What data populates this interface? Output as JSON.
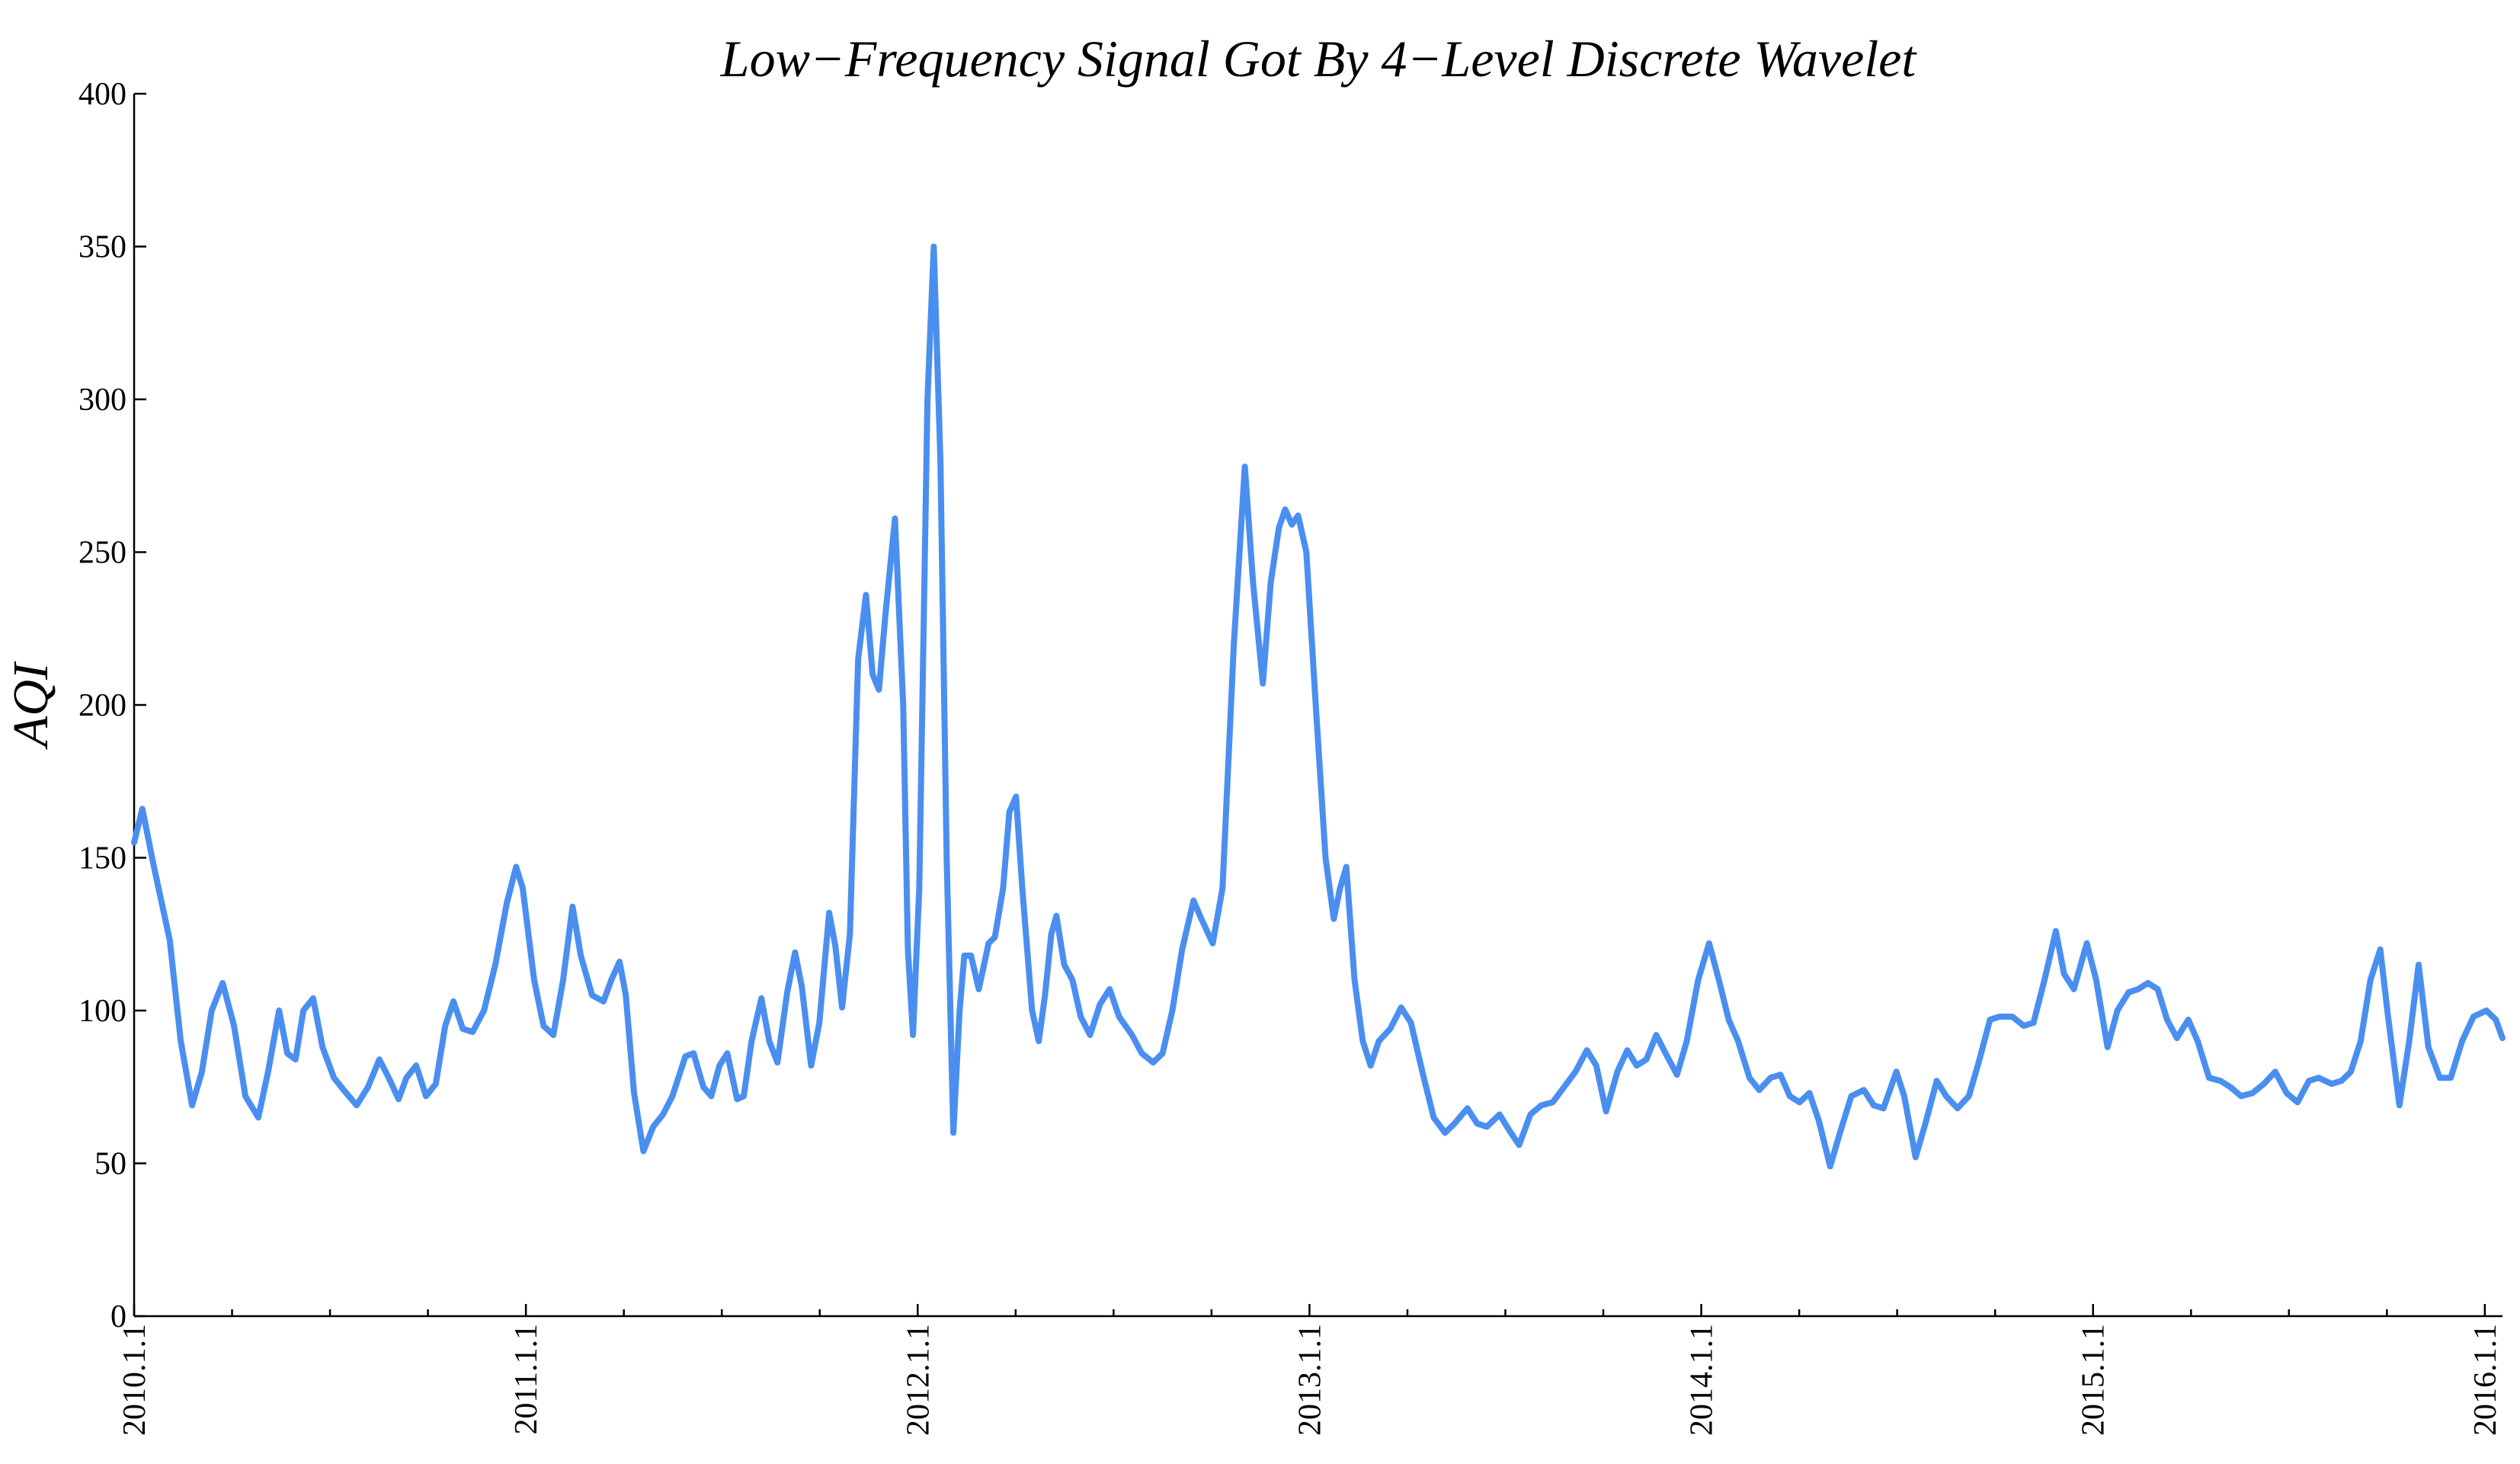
{
  "chart_data": {
    "type": "line",
    "title": "Low−Frequency Signal Got By 4−Level Discrete Wavelet",
    "ylabel": "AQI",
    "xlim": [
      2010,
      2016.045
    ],
    "ylim": [
      0,
      400
    ],
    "yticks": [
      0,
      50,
      100,
      150,
      200,
      250,
      300,
      350,
      400
    ],
    "xticks": [
      {
        "value": 2010,
        "label": "2010.1.1"
      },
      {
        "value": 2011,
        "label": "2011.1.1"
      },
      {
        "value": 2012,
        "label": "2012.1.1"
      },
      {
        "value": 2013,
        "label": "2013.1.1"
      },
      {
        "value": 2014,
        "label": "2014.1.1"
      },
      {
        "value": 2015,
        "label": "2015.1.1"
      },
      {
        "value": 2016,
        "label": "2016.1.1"
      }
    ],
    "xminorticks": [
      2010.25,
      2010.5,
      2010.75,
      2011.25,
      2011.5,
      2011.75,
      2012.25,
      2012.5,
      2012.75,
      2013.25,
      2013.5,
      2013.75,
      2014.25,
      2014.5,
      2014.75,
      2015.25,
      2015.5,
      2015.75
    ],
    "color": "#4a8ff0",
    "x": [
      2010.0,
      2010.021,
      2010.049,
      2010.091,
      2010.119,
      2010.148,
      2010.173,
      2010.198,
      2010.226,
      2010.255,
      2010.284,
      2010.317,
      2010.342,
      2010.37,
      2010.391,
      2010.412,
      2010.432,
      2010.457,
      2010.481,
      2010.51,
      2010.535,
      2010.568,
      2010.597,
      2010.626,
      2010.65,
      2010.675,
      2010.695,
      2010.72,
      2010.745,
      2010.77,
      2010.794,
      2010.815,
      2010.839,
      2010.864,
      2010.893,
      2010.922,
      2010.951,
      2010.975,
      2010.992,
      2011.021,
      2011.045,
      2011.07,
      2011.095,
      2011.119,
      2011.14,
      2011.169,
      2011.198,
      2011.218,
      2011.239,
      2011.255,
      2011.276,
      2011.3,
      2011.325,
      2011.35,
      2011.374,
      2011.407,
      2011.428,
      2011.453,
      2011.473,
      2011.494,
      2011.514,
      2011.539,
      2011.556,
      2011.576,
      2011.601,
      2011.621,
      2011.642,
      2011.667,
      2011.687,
      2011.704,
      2011.728,
      2011.749,
      2011.774,
      2011.79,
      2011.807,
      2011.827,
      2011.848,
      2011.868,
      2011.885,
      2011.901,
      2011.918,
      2011.942,
      2011.963,
      2011.975,
      2011.988,
      2012.004,
      2012.025,
      2012.041,
      2012.058,
      2012.074,
      2012.091,
      2012.107,
      2012.119,
      2012.136,
      2012.156,
      2012.181,
      2012.197,
      2012.218,
      2012.234,
      2012.251,
      2012.267,
      2012.292,
      2012.309,
      2012.325,
      2012.341,
      2012.354,
      2012.374,
      2012.395,
      2012.416,
      2012.44,
      2012.465,
      2012.49,
      2012.514,
      2012.547,
      2012.572,
      2012.601,
      2012.625,
      2012.65,
      2012.675,
      2012.704,
      2012.724,
      2012.753,
      2012.778,
      2012.807,
      2012.835,
      2012.856,
      2012.881,
      2012.901,
      2012.922,
      2012.938,
      2012.955,
      2012.971,
      2012.992,
      2013.016,
      2013.041,
      2013.062,
      2013.078,
      2013.094,
      2013.115,
      2013.136,
      2013.156,
      2013.177,
      2013.206,
      2013.234,
      2013.259,
      2013.288,
      2013.317,
      2013.346,
      2013.37,
      2013.403,
      2013.428,
      2013.453,
      2013.485,
      2013.514,
      2013.535,
      2013.564,
      2013.592,
      2013.621,
      2013.65,
      2013.679,
      2013.708,
      2013.732,
      2013.757,
      2013.786,
      2013.811,
      2013.835,
      2013.86,
      2013.885,
      2013.909,
      2013.938,
      2013.963,
      2013.992,
      2014.02,
      2014.045,
      2014.07,
      2014.094,
      2014.123,
      2014.148,
      2014.177,
      2014.202,
      2014.226,
      2014.251,
      2014.276,
      2014.3,
      2014.329,
      2014.354,
      2014.383,
      2014.415,
      2014.44,
      2014.465,
      2014.498,
      2014.518,
      2014.547,
      2014.572,
      2014.601,
      2014.625,
      2014.654,
      2014.683,
      2014.708,
      2014.737,
      2014.761,
      2014.794,
      2014.823,
      2014.848,
      2014.876,
      2014.905,
      2014.926,
      2014.951,
      2014.984,
      2015.008,
      2015.037,
      2015.062,
      2015.091,
      2015.115,
      2015.14,
      2015.165,
      2015.189,
      2015.214,
      2015.243,
      2015.267,
      2015.296,
      2015.325,
      2015.35,
      2015.378,
      2015.407,
      2015.436,
      2015.465,
      2015.494,
      2015.522,
      2015.551,
      2015.576,
      2015.609,
      2015.634,
      2015.658,
      2015.683,
      2015.708,
      2015.733,
      2015.753,
      2015.782,
      2015.807,
      2015.831,
      2015.856,
      2015.885,
      2015.913,
      2015.942,
      2015.971,
      2016.004,
      2016.028,
      2016.045
    ],
    "values": [
      155,
      166,
      148,
      123,
      90,
      69,
      80,
      100,
      109,
      95,
      72,
      65,
      80,
      100,
      86,
      84,
      100,
      104,
      88,
      78,
      74,
      69,
      75,
      84,
      78,
      71,
      78,
      82,
      72,
      76,
      95,
      103,
      94,
      93,
      100,
      115,
      135,
      147,
      140,
      110,
      95,
      92,
      110,
      134,
      118,
      105,
      103,
      110,
      116,
      105,
      73,
      54,
      62,
      66,
      72,
      85,
      86,
      75,
      72,
      82,
      86,
      71,
      72,
      90,
      104,
      90,
      83,
      106,
      119,
      108,
      82,
      96,
      132,
      121,
      101,
      125,
      215,
      236,
      210,
      205,
      230,
      261,
      200,
      120,
      92,
      140,
      300,
      350,
      280,
      150,
      60,
      100,
      118,
      118,
      107,
      122,
      124,
      140,
      165,
      170,
      140,
      100,
      90,
      105,
      125,
      131,
      115,
      110,
      98,
      92,
      102,
      107,
      98,
      92,
      86,
      83,
      86,
      100,
      120,
      136,
      130,
      122,
      140,
      220,
      278,
      240,
      207,
      240,
      258,
      264,
      259,
      262,
      250,
      200,
      150,
      130,
      140,
      147,
      110,
      90,
      82,
      90,
      94,
      101,
      96,
      80,
      65,
      60,
      63,
      68,
      63,
      62,
      66,
      60,
      56,
      66,
      69,
      70,
      75,
      80,
      87,
      82,
      67,
      80,
      87,
      82,
      84,
      92,
      86,
      79,
      90,
      110,
      122,
      110,
      97,
      90,
      78,
      74,
      78,
      79,
      72,
      70,
      73,
      64,
      49,
      60,
      72,
      74,
      69,
      68,
      80,
      72,
      52,
      63,
      77,
      72,
      68,
      72,
      83,
      97,
      98,
      98,
      95,
      96,
      110,
      126,
      112,
      107,
      122,
      110,
      88,
      100,
      106,
      107,
      109,
      107,
      97,
      91,
      97,
      90,
      78,
      77,
      75,
      72,
      73,
      76,
      80,
      73,
      70,
      77,
      78,
      76,
      77,
      80,
      90,
      110,
      120,
      98,
      69,
      90,
      115,
      88,
      78,
      78,
      90,
      98,
      100,
      97,
      91
    ]
  }
}
